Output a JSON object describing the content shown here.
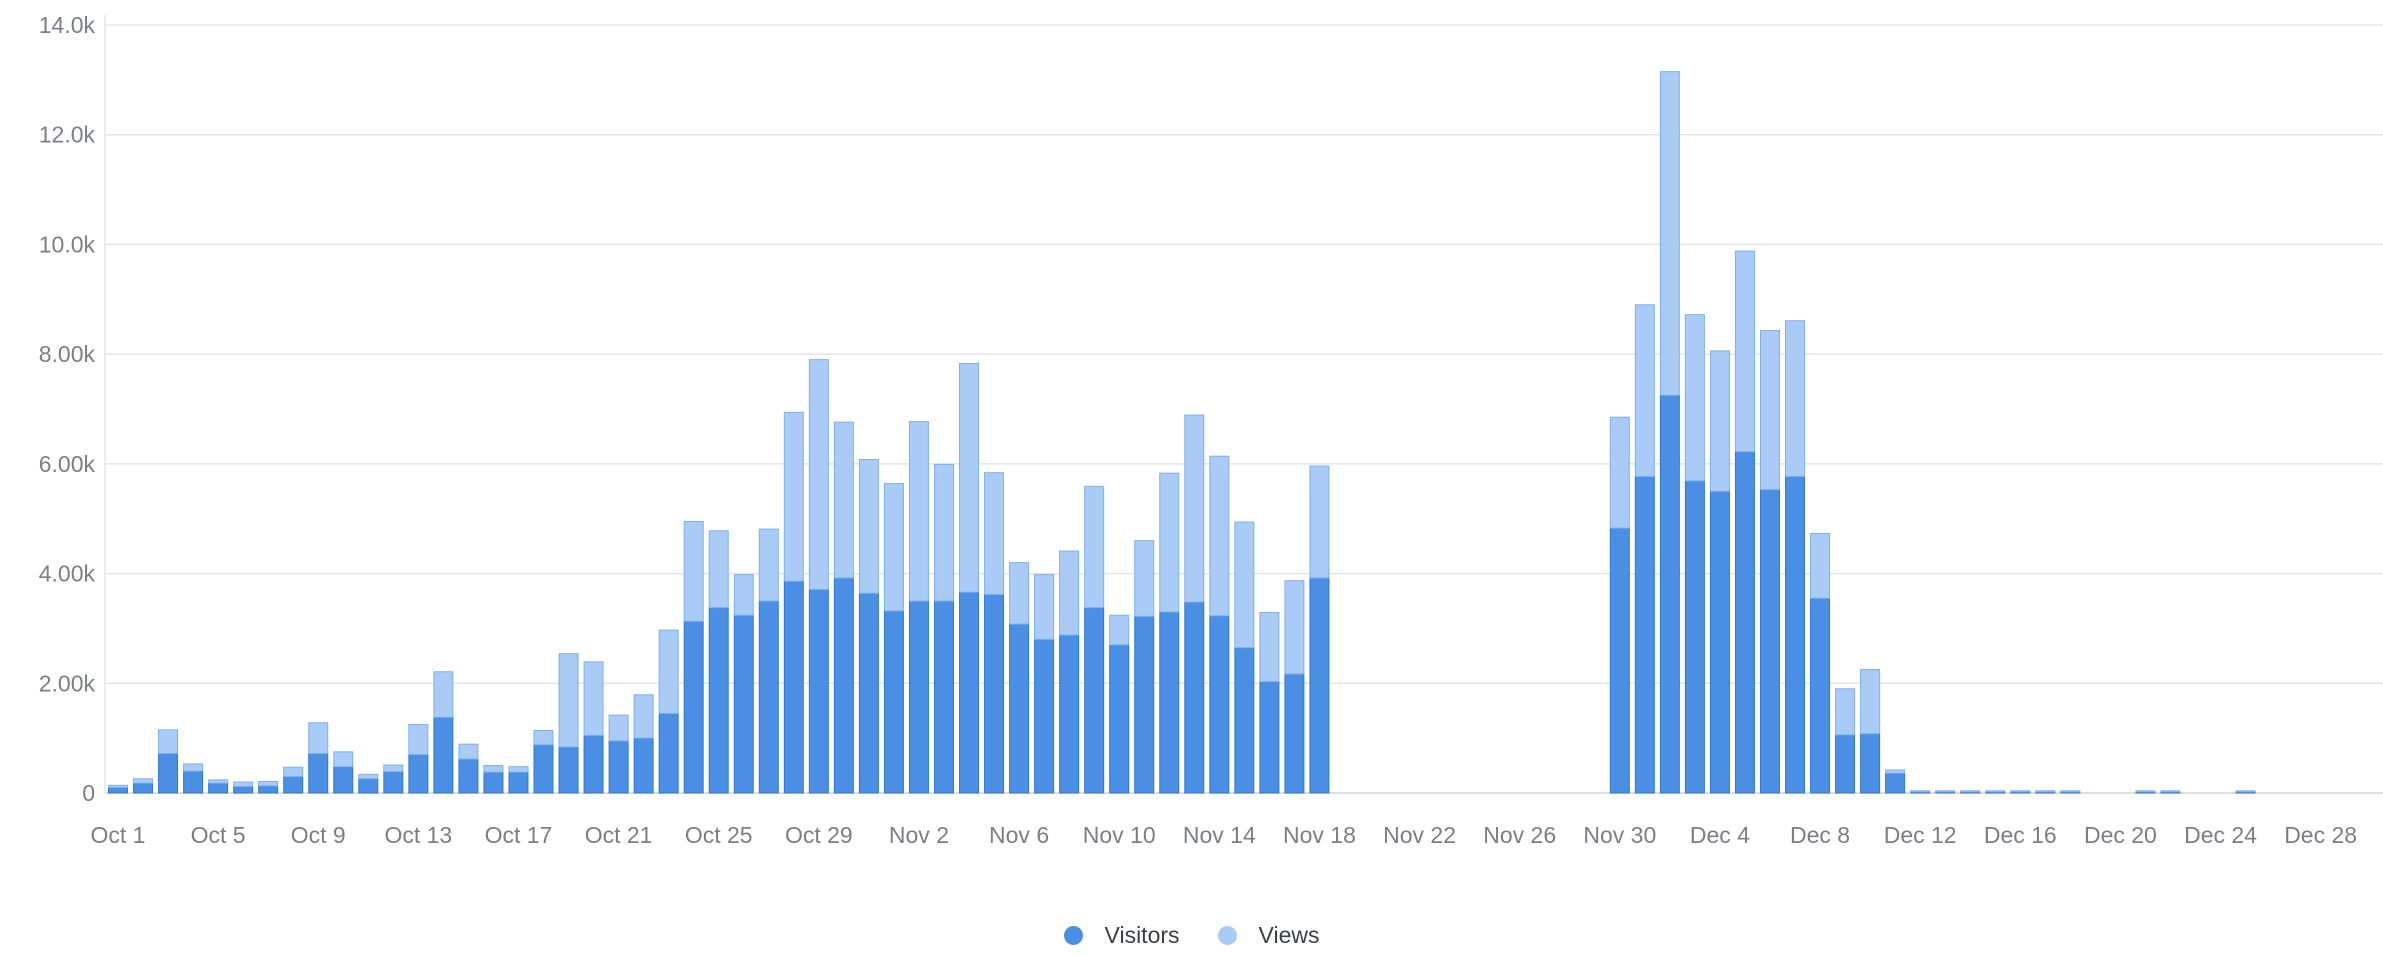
{
  "chart_data": {
    "type": "bar",
    "stacked": true,
    "categories": [
      "Oct 1",
      "Oct 2",
      "Oct 3",
      "Oct 4",
      "Oct 5",
      "Oct 6",
      "Oct 7",
      "Oct 8",
      "Oct 9",
      "Oct 10",
      "Oct 11",
      "Oct 12",
      "Oct 13",
      "Oct 14",
      "Oct 15",
      "Oct 16",
      "Oct 17",
      "Oct 18",
      "Oct 19",
      "Oct 20",
      "Oct 21",
      "Oct 22",
      "Oct 23",
      "Oct 24",
      "Oct 25",
      "Oct 26",
      "Oct 27",
      "Oct 28",
      "Oct 29",
      "Oct 30",
      "Oct 31",
      "Nov 1",
      "Nov 2",
      "Nov 3",
      "Nov 4",
      "Nov 5",
      "Nov 6",
      "Nov 7",
      "Nov 8",
      "Nov 9",
      "Nov 10",
      "Nov 11",
      "Nov 12",
      "Nov 13",
      "Nov 14",
      "Nov 15",
      "Nov 16",
      "Nov 17",
      "Nov 18",
      "Nov 19",
      "Nov 20",
      "Nov 21",
      "Nov 22",
      "Nov 23",
      "Nov 24",
      "Nov 25",
      "Nov 26",
      "Nov 27",
      "Nov 28",
      "Nov 29",
      "Nov 30",
      "Dec 1",
      "Dec 2",
      "Dec 3",
      "Dec 4",
      "Dec 5",
      "Dec 6",
      "Dec 7",
      "Dec 8",
      "Dec 9",
      "Dec 10",
      "Dec 11",
      "Dec 12",
      "Dec 13",
      "Dec 14",
      "Dec 15",
      "Dec 16",
      "Dec 17",
      "Dec 18",
      "Dec 19",
      "Dec 20",
      "Dec 21",
      "Dec 22",
      "Dec 23",
      "Dec 24",
      "Dec 25",
      "Dec 26",
      "Dec 27",
      "Dec 28",
      "Dec 29",
      "Dec 30",
      "Dec 31"
    ],
    "x_tick_labels": [
      "Oct 1",
      "Oct 5",
      "Oct 9",
      "Oct 13",
      "Oct 17",
      "Oct 21",
      "Oct 25",
      "Oct 29",
      "Nov 2",
      "Nov 6",
      "Nov 10",
      "Nov 14",
      "Nov 18",
      "Nov 22",
      "Nov 26",
      "Nov 30",
      "Dec 4",
      "Dec 8",
      "Dec 12",
      "Dec 16",
      "Dec 20",
      "Dec 24",
      "Dec 28"
    ],
    "y_tick_labels": [
      "0",
      "2.00k",
      "4.00k",
      "6.00k",
      "8.00k",
      "10.0k",
      "12.0k",
      "14.0k"
    ],
    "ylim": [
      0,
      14000
    ],
    "grid": true,
    "legend_position": "bottom-center",
    "series": [
      {
        "name": "Visitors",
        "color": "#4a8fe3",
        "values": [
          100,
          180,
          720,
          400,
          180,
          120,
          130,
          300,
          720,
          480,
          260,
          390,
          700,
          1380,
          620,
          380,
          380,
          880,
          840,
          1050,
          950,
          1000,
          1450,
          3130,
          3380,
          3240,
          3500,
          3860,
          3710,
          3920,
          3640,
          3320,
          3500,
          3500,
          3660,
          3620,
          3080,
          2800,
          2880,
          3380,
          2700,
          3220,
          3300,
          3480,
          3230,
          2650,
          2030,
          2170,
          3920,
          0,
          0,
          0,
          0,
          0,
          0,
          0,
          0,
          0,
          0,
          0,
          4830,
          5770,
          7250,
          5690,
          5500,
          6220,
          5530,
          5770,
          3550,
          1060,
          1080,
          360,
          20,
          20,
          20,
          20,
          20,
          20,
          20,
          0,
          0,
          20,
          20,
          0,
          0,
          20,
          0,
          0,
          0,
          0,
          0,
          0
        ]
      },
      {
        "name": "Views",
        "color": "#a9cbf5",
        "values": [
          40,
          80,
          430,
          130,
          60,
          80,
          80,
          170,
          560,
          270,
          80,
          120,
          550,
          830,
          270,
          120,
          100,
          260,
          1700,
          1340,
          470,
          790,
          1520,
          1820,
          1400,
          740,
          1310,
          3080,
          4190,
          2840,
          2440,
          2320,
          3270,
          2490,
          4170,
          2220,
          1120,
          1180,
          1530,
          2210,
          540,
          1380,
          2530,
          3410,
          2910,
          2290,
          1260,
          1700,
          2040,
          0,
          0,
          0,
          0,
          0,
          0,
          0,
          0,
          0,
          0,
          0,
          2020,
          3130,
          5900,
          3030,
          2560,
          3660,
          2900,
          2840,
          1180,
          840,
          1170,
          60,
          20,
          20,
          20,
          20,
          20,
          20,
          20,
          0,
          0,
          20,
          20,
          0,
          0,
          20,
          0,
          0,
          0,
          0,
          0,
          0
        ]
      }
    ]
  },
  "legend": {
    "visitors_label": "Visitors",
    "views_label": "Views"
  }
}
